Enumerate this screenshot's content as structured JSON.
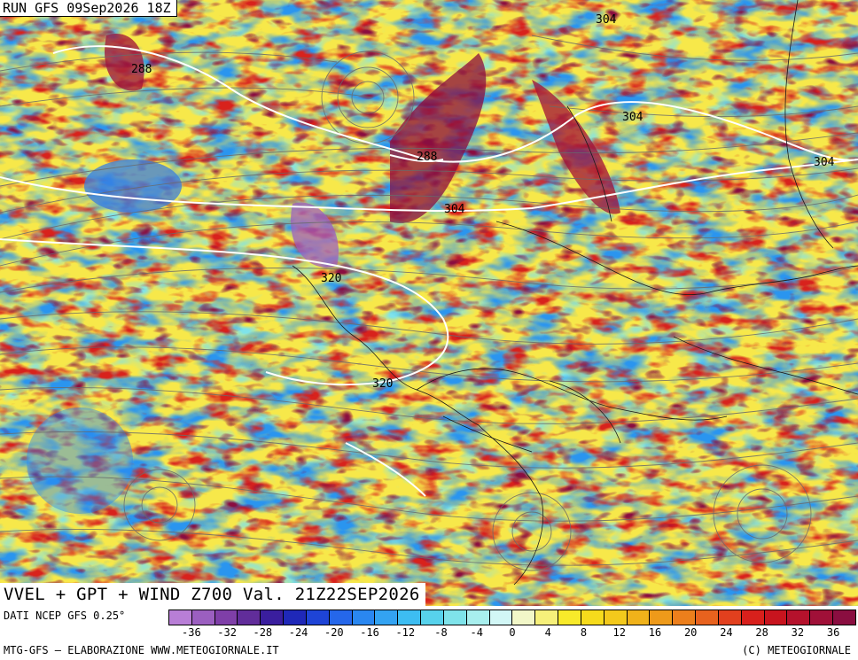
{
  "header": {
    "run_title": "RUN GFS 09Sep2026 18Z"
  },
  "map": {
    "title": "VVEL + GPT + WIND Z700 Val. 21Z22SEP2026",
    "contour_labels": [
      "288",
      "304",
      "304",
      "304",
      "288",
      "304",
      "320",
      "320"
    ]
  },
  "legend": {
    "data_source": "DATI NCEP GFS 0.25°",
    "ticks": [
      "-36",
      "-32",
      "-28",
      "-24",
      "-20",
      "-16",
      "-12",
      "-8",
      "-4",
      "0",
      "4",
      "8",
      "12",
      "16",
      "20",
      "24",
      "28",
      "32",
      "36"
    ],
    "colors": [
      "#b87ed6",
      "#9b5fc0",
      "#7f3fa8",
      "#612d9a",
      "#3a1e9e",
      "#1f28b8",
      "#1e44d6",
      "#2567ea",
      "#2a87f0",
      "#33a3f2",
      "#3dbdf2",
      "#57d2ec",
      "#7fe3ea",
      "#a8efee",
      "#d2f7f6",
      "#f2f7c8",
      "#f6f07a",
      "#f8ea2a",
      "#f6db1c",
      "#f3c91c",
      "#f0b21a",
      "#ee9a1a",
      "#ec7f1c",
      "#e8621e",
      "#e2401e",
      "#d8201c",
      "#c8141e",
      "#b5122c",
      "#a01038",
      "#8a0e40"
    ],
    "credit_left": "MTG-GFS – ELABORAZIONE WWW.METEOGIORNALE.IT",
    "credit_right": "(C) METEOGIORNALE"
  }
}
